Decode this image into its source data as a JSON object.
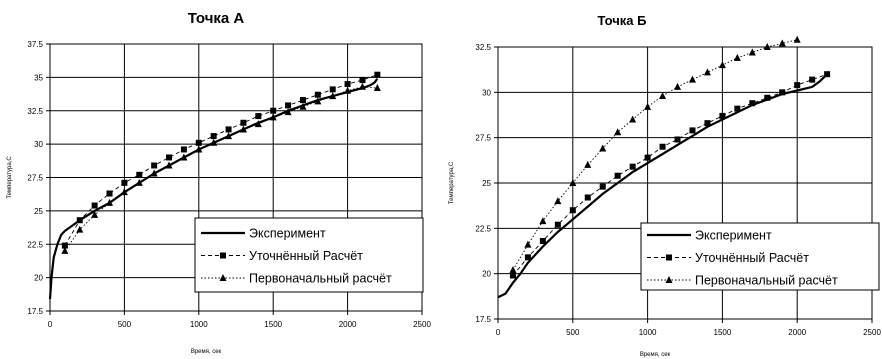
{
  "chart_data": [
    {
      "type": "line",
      "title": "Точка А",
      "xlabel": "Время, сек",
      "ylabel": "Температура,С",
      "xlim": [
        0,
        2500
      ],
      "ylim": [
        17.5,
        37.5
      ],
      "x_ticks": [
        "0",
        "500",
        "1000",
        "1500",
        "2000",
        "2500"
      ],
      "y_ticks": [
        "17.5",
        "20",
        "22.5",
        "25",
        "27.5",
        "30",
        "32.5",
        "35",
        "37.5"
      ],
      "grid": true,
      "legend_position": "bottom-right",
      "series": [
        {
          "name": "Эксперимент",
          "style": "solid",
          "x": [
            0,
            10,
            25,
            50,
            75,
            100,
            150,
            200,
            300,
            400,
            500,
            600,
            700,
            800,
            900,
            1000,
            1100,
            1200,
            1300,
            1400,
            1500,
            1600,
            1700,
            1800,
            1900,
            2000,
            2100,
            2150,
            2180,
            2200
          ],
          "y": [
            18.4,
            20,
            21.5,
            22.5,
            23.2,
            23.5,
            23.9,
            24.3,
            25.0,
            25.6,
            26.4,
            27.1,
            27.8,
            28.4,
            29.0,
            29.6,
            30.1,
            30.6,
            31.1,
            31.6,
            32.0,
            32.5,
            32.9,
            33.3,
            33.6,
            33.9,
            34.2,
            34.4,
            34.6,
            34.9
          ]
        },
        {
          "name": "Уточнённый Расчёт",
          "style": "dashed",
          "marker": "square",
          "x": [
            100,
            200,
            300,
            400,
            500,
            600,
            700,
            800,
            900,
            1000,
            1100,
            1200,
            1300,
            1400,
            1500,
            1600,
            1700,
            1800,
            1900,
            2000,
            2100,
            2200
          ],
          "y": [
            22.4,
            24.3,
            25.4,
            26.3,
            27.1,
            27.7,
            28.4,
            29.0,
            29.6,
            30.1,
            30.6,
            31.1,
            31.6,
            32.1,
            32.5,
            32.9,
            33.3,
            33.7,
            34.1,
            34.5,
            34.8,
            35.2
          ]
        },
        {
          "name": "Первоначальный расчёт",
          "style": "dotted",
          "marker": "triangle",
          "x": [
            100,
            200,
            300,
            400,
            500,
            600,
            700,
            800,
            900,
            1000,
            1100,
            1200,
            1300,
            1400,
            1500,
            1600,
            1700,
            1800,
            1900,
            2000,
            2100,
            2200
          ],
          "y": [
            22.0,
            23.6,
            24.7,
            25.6,
            26.4,
            27.1,
            27.8,
            28.4,
            29.0,
            29.6,
            30.1,
            30.6,
            31.1,
            31.5,
            32.0,
            32.4,
            32.8,
            33.2,
            33.6,
            34.0,
            34.3,
            34.2
          ]
        }
      ]
    },
    {
      "type": "line",
      "title": "Точка Б",
      "xlabel": "Время, сек",
      "ylabel": "Температура,С",
      "xlim": [
        0,
        2500
      ],
      "ylim": [
        17.5,
        32.5
      ],
      "x_ticks": [
        "0",
        "500",
        "1000",
        "1500",
        "2000",
        "2500"
      ],
      "y_ticks": [
        "17.5",
        "20",
        "22.5",
        "25",
        "27.5",
        "30",
        "32.5"
      ],
      "grid": true,
      "legend_position": "bottom-right",
      "series": [
        {
          "name": "Эксперимент",
          "style": "solid",
          "x": [
            0,
            50,
            100,
            150,
            200,
            300,
            400,
            500,
            600,
            700,
            800,
            900,
            1000,
            1100,
            1200,
            1300,
            1400,
            1500,
            1600,
            1700,
            1800,
            1900,
            2000,
            2100,
            2150,
            2200
          ],
          "y": [
            18.7,
            18.9,
            19.5,
            20.0,
            20.6,
            21.5,
            22.3,
            23.0,
            23.7,
            24.4,
            25.0,
            25.6,
            26.1,
            26.6,
            27.1,
            27.6,
            28.1,
            28.5,
            28.9,
            29.3,
            29.6,
            29.9,
            30.1,
            30.3,
            30.6,
            31.0
          ]
        },
        {
          "name": "Уточнённый Расчёт",
          "style": "dashed",
          "marker": "square",
          "x": [
            100,
            200,
            300,
            400,
            500,
            600,
            700,
            800,
            900,
            1000,
            1100,
            1200,
            1300,
            1400,
            1500,
            1600,
            1700,
            1800,
            1900,
            2000,
            2100,
            2200
          ],
          "y": [
            19.9,
            20.9,
            21.8,
            22.7,
            23.5,
            24.2,
            24.8,
            25.4,
            25.9,
            26.4,
            27.0,
            27.4,
            27.9,
            28.3,
            28.7,
            29.1,
            29.4,
            29.7,
            30.0,
            30.4,
            30.7,
            31.0
          ]
        },
        {
          "name": "Первоначальный расчёт",
          "style": "dotted",
          "marker": "triangle",
          "x": [
            100,
            200,
            300,
            400,
            500,
            600,
            700,
            800,
            900,
            1000,
            1100,
            1200,
            1300,
            1400,
            1500,
            1600,
            1700,
            1800,
            1900,
            2000
          ],
          "y": [
            20.2,
            21.6,
            22.9,
            24.0,
            25.0,
            26.0,
            26.9,
            27.8,
            28.5,
            29.2,
            29.8,
            30.3,
            30.7,
            31.1,
            31.5,
            31.9,
            32.2,
            32.5,
            32.7,
            32.9
          ]
        }
      ]
    }
  ]
}
